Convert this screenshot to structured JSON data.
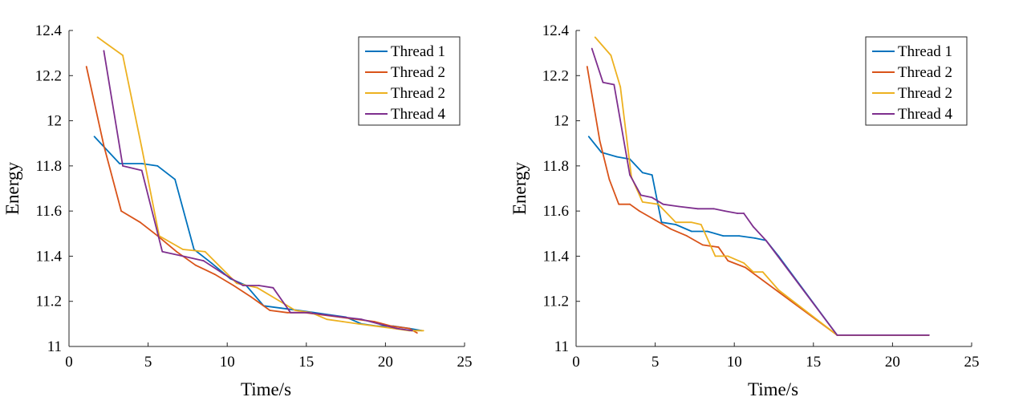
{
  "chart_data": [
    {
      "type": "line",
      "xlabel": "Time/s",
      "ylabel": "Energy",
      "xlim": [
        0,
        25
      ],
      "ylim": [
        11,
        12.4
      ],
      "xticks": [
        "0",
        "5",
        "10",
        "15",
        "20",
        "25"
      ],
      "yticks": [
        "11",
        "11.2",
        "11.4",
        "11.6",
        "11.8",
        "12",
        "12.2",
        "12.4"
      ],
      "grid": false,
      "legend_position": "top-right",
      "series": [
        {
          "name": "Thread 1",
          "color": "#0072BD",
          "x": [
            1.6,
            3.2,
            4.6,
            5.6,
            6.7,
            7.9,
            9.0,
            10.2,
            11.2,
            12.3,
            13.4,
            14.5,
            15.5,
            16.5,
            17.5,
            18.5,
            19.5,
            20.5,
            21.5,
            22.3
          ],
          "y": [
            11.93,
            11.81,
            11.81,
            11.8,
            11.74,
            11.43,
            11.37,
            11.3,
            11.27,
            11.18,
            11.17,
            11.16,
            11.15,
            11.14,
            11.13,
            11.1,
            11.09,
            11.09,
            11.08,
            11.07
          ]
        },
        {
          "name": "Thread 2",
          "color": "#D95319",
          "x": [
            1.1,
            2.2,
            3.3,
            4.5,
            5.6,
            6.8,
            8.0,
            9.2,
            10.4,
            11.5,
            12.7,
            13.8,
            14.9,
            16.0,
            17.1,
            18.2,
            19.3,
            20.4,
            21.5,
            22.0
          ],
          "y": [
            12.24,
            11.89,
            11.6,
            11.55,
            11.49,
            11.42,
            11.36,
            11.32,
            11.27,
            11.22,
            11.16,
            11.15,
            11.15,
            11.14,
            11.13,
            11.12,
            11.11,
            11.09,
            11.08,
            11.06
          ]
        },
        {
          "name": "Thread 2",
          "color": "#EDB120",
          "x": [
            1.8,
            3.4,
            4.6,
            5.7,
            7.2,
            8.6,
            9.6,
            10.6,
            11.9,
            13.1,
            14.3,
            15.3,
            16.3,
            17.3,
            18.3,
            19.4,
            20.5,
            21.5,
            22.4
          ],
          "y": [
            12.37,
            12.29,
            11.88,
            11.49,
            11.43,
            11.42,
            11.35,
            11.28,
            11.26,
            11.21,
            11.16,
            11.15,
            11.12,
            11.11,
            11.1,
            11.09,
            11.08,
            11.07,
            11.07
          ]
        },
        {
          "name": "Thread 4",
          "color": "#7E2F8E",
          "x": [
            2.2,
            3.4,
            4.6,
            5.9,
            7.2,
            8.5,
            9.8,
            11.0,
            12.0,
            12.9,
            14.0,
            15.1,
            16.2,
            17.3,
            18.5,
            19.6,
            20.7,
            21.7
          ],
          "y": [
            12.31,
            11.8,
            11.78,
            11.42,
            11.4,
            11.38,
            11.32,
            11.27,
            11.27,
            11.26,
            11.15,
            11.15,
            11.14,
            11.13,
            11.12,
            11.1,
            11.08,
            11.07
          ]
        }
      ]
    },
    {
      "type": "line",
      "xlabel": "Time/s",
      "ylabel": "Energy",
      "xlim": [
        0,
        25
      ],
      "ylim": [
        11,
        12.4
      ],
      "xticks": [
        "0",
        "5",
        "10",
        "15",
        "20",
        "25"
      ],
      "yticks": [
        "11",
        "11.2",
        "11.4",
        "11.6",
        "11.8",
        "12",
        "12.2",
        "12.4"
      ],
      "grid": false,
      "legend_position": "top-right",
      "series": [
        {
          "name": "Thread 1",
          "color": "#0072BD",
          "x": [
            0.8,
            1.6,
            2.6,
            3.4,
            4.2,
            4.8,
            5.4,
            6.3,
            7.3,
            8.3,
            9.3,
            10.3,
            11.3,
            12.0,
            12.8,
            16.5,
            22.3
          ],
          "y": [
            11.93,
            11.86,
            11.84,
            11.83,
            11.77,
            11.76,
            11.55,
            11.54,
            11.51,
            11.51,
            11.49,
            11.49,
            11.48,
            11.47,
            11.4,
            11.05,
            11.05
          ]
        },
        {
          "name": "Thread 2",
          "color": "#D95319",
          "x": [
            0.7,
            1.5,
            2.1,
            2.7,
            3.4,
            4.0,
            5.0,
            6.0,
            7.0,
            8.0,
            9.0,
            9.6,
            10.7,
            16.5,
            22.3
          ],
          "y": [
            12.24,
            11.91,
            11.74,
            11.63,
            11.63,
            11.6,
            11.56,
            11.52,
            11.49,
            11.45,
            11.44,
            11.38,
            11.35,
            11.05,
            11.05
          ]
        },
        {
          "name": "Thread 2",
          "color": "#EDB120",
          "x": [
            1.2,
            2.2,
            2.8,
            3.5,
            4.2,
            5.2,
            6.3,
            7.3,
            7.9,
            8.8,
            9.6,
            10.6,
            11.2,
            11.8,
            12.8,
            16.5,
            22.3
          ],
          "y": [
            12.37,
            12.29,
            12.15,
            11.75,
            11.64,
            11.63,
            11.55,
            11.55,
            11.54,
            11.4,
            11.4,
            11.37,
            11.33,
            11.33,
            11.25,
            11.05,
            11.05
          ]
        },
        {
          "name": "Thread 4",
          "color": "#7E2F8E",
          "x": [
            1.0,
            1.7,
            2.4,
            3.4,
            4.1,
            4.8,
            5.5,
            6.5,
            7.7,
            8.7,
            9.4,
            10.2,
            10.6,
            11.2,
            12.0,
            16.5,
            22.3
          ],
          "y": [
            12.32,
            12.17,
            12.16,
            11.76,
            11.67,
            11.66,
            11.63,
            11.62,
            11.61,
            11.61,
            11.6,
            11.59,
            11.59,
            11.53,
            11.47,
            11.05,
            11.05
          ]
        }
      ]
    }
  ]
}
